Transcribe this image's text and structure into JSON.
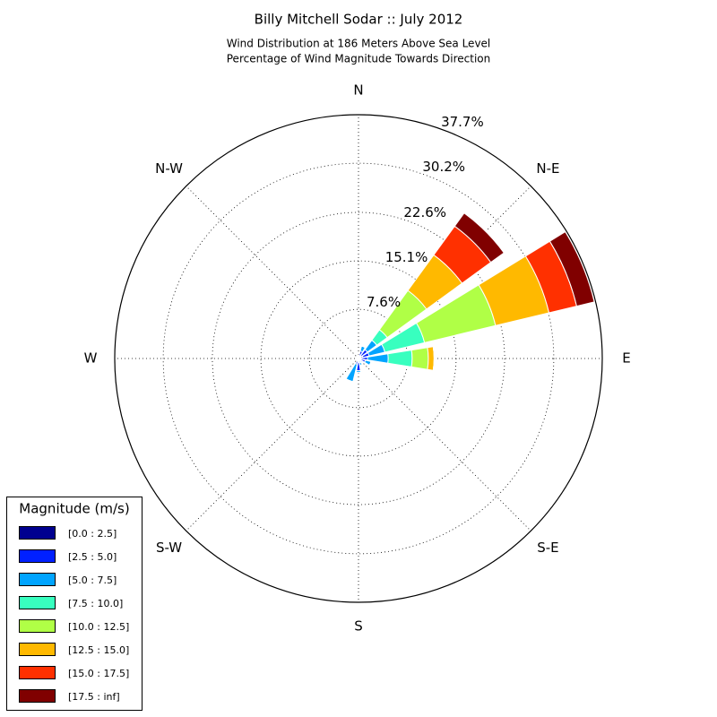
{
  "chart_data": {
    "type": "windrose",
    "title": "Billy Mitchell Sodar :: July 2012",
    "subtitle": [
      "Wind Distribution at 186 Meters Above Sea Level",
      "Percentage of Wind Magnitude Towards Direction"
    ],
    "categories": [
      "N",
      null,
      "N-E",
      null,
      "E",
      null,
      "S-E",
      null,
      "S",
      null,
      "S-W",
      null,
      "W",
      null,
      "N-W",
      null
    ],
    "ylim": [
      0,
      37.7
    ],
    "yticks": [
      {
        "value": 7.6,
        "label": "7.6%"
      },
      {
        "value": 15.1,
        "label": "15.1%"
      },
      {
        "value": 22.6,
        "label": "22.6%"
      },
      {
        "value": 30.2,
        "label": "30.2%"
      },
      {
        "value": 37.7,
        "label": "37.7%"
      }
    ],
    "grid": true,
    "legend_title": "Magnitude (m/s)",
    "legend": "lower left",
    "series": [
      {
        "name": "[0.0 : 2.5]",
        "color": "#00008f",
        "values": [
          0.3,
          0.4,
          0.5,
          0.7,
          0.4,
          0.3,
          0.2,
          0.3,
          0.6,
          0.3,
          0.1,
          0.1,
          0.1,
          0.1,
          0.1,
          0.2
        ]
      },
      {
        "name": "[2.5 : 5.0]",
        "color": "#0020ff",
        "values": [
          0.2,
          0.8,
          1.2,
          1.0,
          1.0,
          0.8,
          0.4,
          0.4,
          1.3,
          0.6,
          0.1,
          0.1,
          0,
          0,
          0,
          0.1
        ]
      },
      {
        "name": "[5.0 : 7.5]",
        "color": "#00a4ff",
        "values": [
          0,
          0.8,
          1.8,
          2.5,
          3.2,
          0.9,
          0.2,
          0.4,
          0.3,
          2.8,
          0.2,
          0,
          0,
          0,
          0,
          0
        ]
      },
      {
        "name": "[7.5 : 10.0]",
        "color": "#38ffbf",
        "values": [
          0,
          0,
          2.0,
          6.3,
          3.7,
          0,
          0,
          0,
          0,
          0,
          0,
          0,
          0,
          0,
          0,
          0
        ]
      },
      {
        "name": "[10.0 : 12.5]",
        "color": "#b0ff46",
        "values": [
          0,
          0,
          7.5,
          11.3,
          2.5,
          0,
          0,
          0,
          0,
          0,
          0,
          0,
          0,
          0,
          0,
          0
        ]
      },
      {
        "name": "[12.5 : 15.0]",
        "color": "#ffb900",
        "values": [
          0,
          0,
          6.8,
          8.5,
          0.9,
          0,
          0,
          0,
          0,
          0,
          0,
          0,
          0,
          0,
          0,
          0
        ]
      },
      {
        "name": "[15.0 : 17.5]",
        "color": "#ff3000",
        "values": [
          0,
          0,
          5.5,
          4.4,
          0,
          0,
          0,
          0,
          0,
          0,
          0,
          0,
          0,
          0,
          0,
          0
        ]
      },
      {
        "name": "[17.5 : inf]",
        "color": "#800000",
        "values": [
          0,
          0,
          2.5,
          2.8,
          0,
          0,
          0,
          0,
          0,
          0,
          0,
          0,
          0,
          0,
          0,
          0
        ]
      }
    ]
  }
}
